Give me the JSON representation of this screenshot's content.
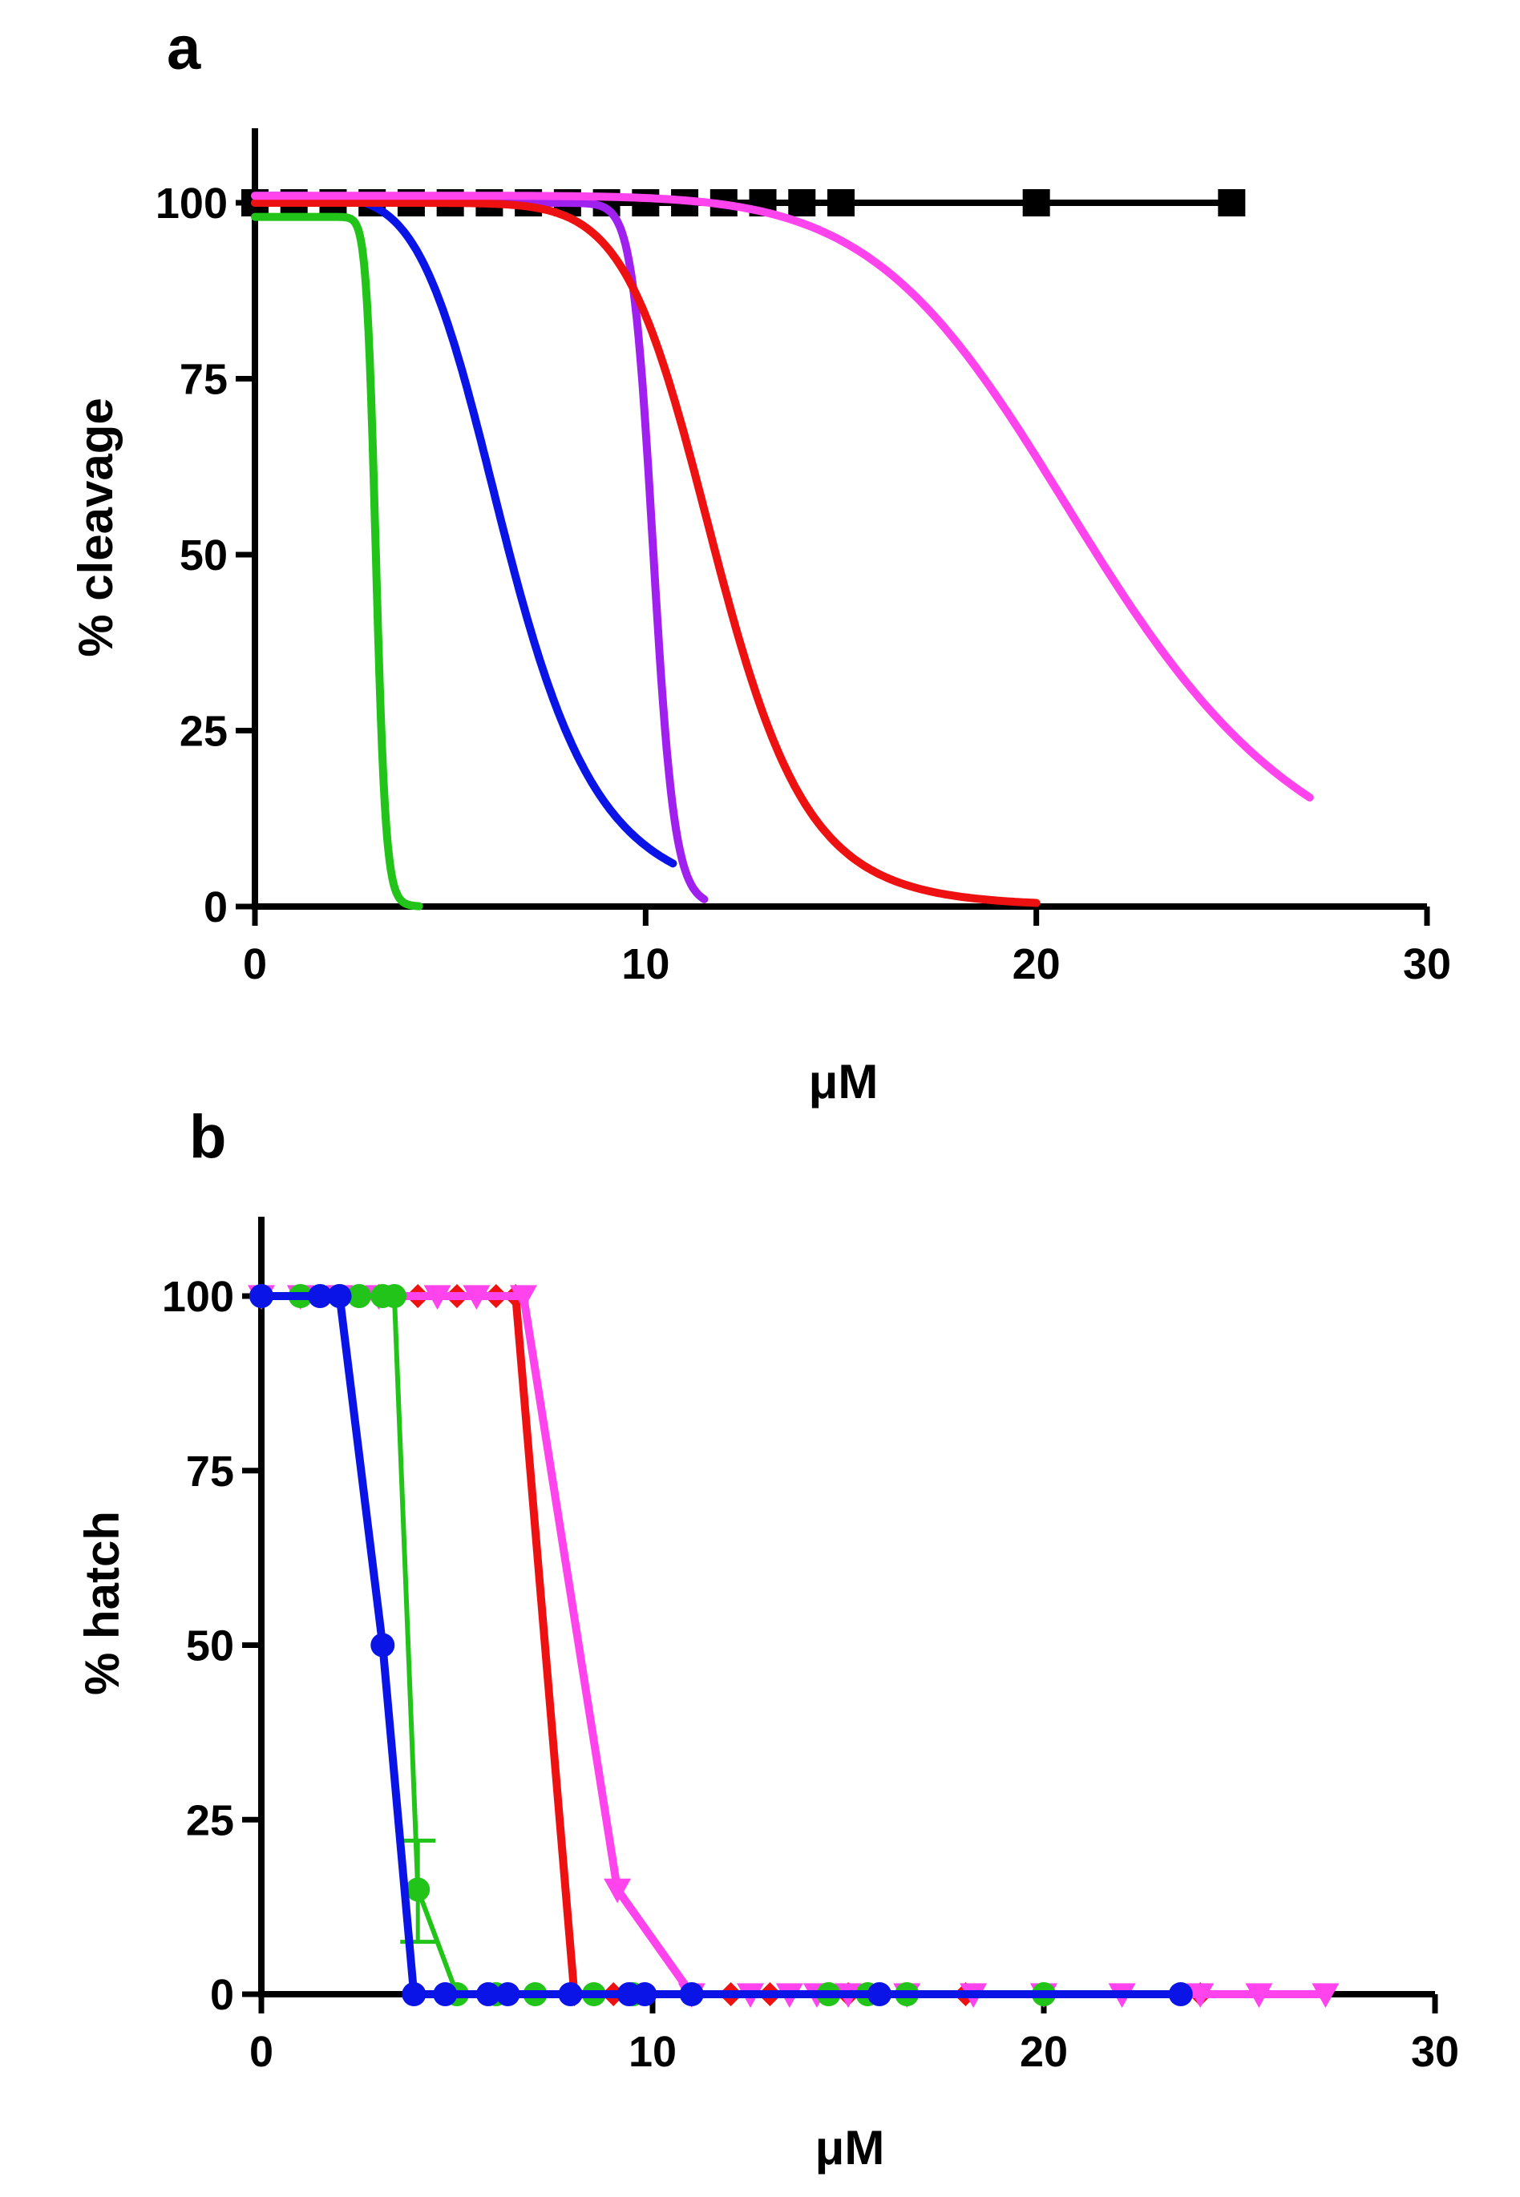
{
  "chart_data": [
    {
      "type": "line",
      "panel_label": "a",
      "xlabel": "μM",
      "ylabel": "% cleavage",
      "xlim": [
        0,
        30
      ],
      "ylim": [
        0,
        110
      ],
      "xticks": [
        0,
        10,
        20,
        30
      ],
      "yticks": [
        0,
        25,
        50,
        75,
        100
      ],
      "xtick_labels": [
        "0",
        "10",
        "20",
        "30"
      ],
      "ytick_labels": [
        "0",
        "25",
        "50",
        "75",
        "100"
      ],
      "grid": false,
      "legend": "none",
      "series": [
        {
          "name": "black",
          "color": "#000000",
          "kind": "points",
          "marker": "square",
          "x": [
            0,
            1,
            2,
            3,
            4,
            5,
            6,
            7,
            8,
            9,
            10,
            11,
            12,
            13,
            14,
            15,
            20,
            25
          ],
          "y": [
            100,
            100,
            100,
            100,
            100,
            100,
            100,
            100,
            100,
            100,
            100,
            100,
            100,
            100,
            100,
            100,
            100,
            100
          ]
        },
        {
          "name": "green",
          "color": "#22c41a",
          "kind": "sigmoid",
          "top": 98,
          "bottom": 0,
          "ec50": 3.1,
          "hill": 25,
          "x_range": [
            0,
            4.2
          ]
        },
        {
          "name": "blue",
          "color": "#0a14e6",
          "kind": "sigmoid",
          "top": 101,
          "bottom": 0,
          "ec50": 6.5,
          "hill": 5.5,
          "x_range": [
            0,
            10.7
          ]
        },
        {
          "name": "purple",
          "color": "#a020f0",
          "kind": "sigmoid",
          "top": 100,
          "bottom": 0,
          "ec50": 10.2,
          "hill": 38,
          "x_range": [
            0,
            11.5
          ]
        },
        {
          "name": "red",
          "color": "#ee1111",
          "kind": "sigmoid",
          "top": 100,
          "bottom": 0,
          "ec50": 11.8,
          "hill": 10,
          "x_range": [
            0,
            20
          ]
        },
        {
          "name": "magenta",
          "color": "#ff44ee",
          "kind": "sigmoid",
          "top": 101,
          "bottom": 0,
          "ec50": 21.5,
          "hill": 7.5,
          "x_range": [
            0,
            27
          ]
        }
      ]
    },
    {
      "type": "line",
      "panel_label": "b",
      "xlabel": "μM",
      "ylabel": "% hatch",
      "xlim": [
        0,
        30
      ],
      "ylim": [
        0,
        110
      ],
      "xticks": [
        0,
        10,
        20,
        30
      ],
      "yticks": [
        0,
        25,
        50,
        75,
        100
      ],
      "xtick_labels": [
        "0",
        "10",
        "20",
        "30"
      ],
      "ytick_labels": [
        "0",
        "25",
        "50",
        "75",
        "100"
      ],
      "grid": false,
      "legend": "none",
      "series": [
        {
          "name": "red",
          "color": "#ee1111",
          "marker": "diamond",
          "line_width": 10,
          "x": [
            0,
            1,
            2,
            3,
            4,
            5,
            6,
            6.5,
            8,
            9,
            11,
            12,
            13,
            15,
            18,
            20,
            24
          ],
          "y": [
            100,
            100,
            100,
            100,
            100,
            100,
            100,
            100,
            0,
            0,
            0,
            0,
            0,
            0,
            0,
            0,
            0
          ]
        },
        {
          "name": "magenta",
          "color": "#ff44ee",
          "marker": "triangle-down",
          "line_width": 10,
          "x": [
            0,
            1,
            2,
            3,
            4.5,
            5.5,
            6.7,
            9.1,
            11,
            12.5,
            13.5,
            14.2,
            15,
            16.5,
            18.2,
            20,
            22,
            24,
            25.5,
            27.2
          ],
          "y": [
            100,
            100,
            100,
            100,
            100,
            100,
            100,
            15,
            0,
            0,
            0,
            0,
            0,
            0,
            0,
            0,
            0,
            0,
            0,
            0
          ]
        },
        {
          "name": "green",
          "color": "#22c41a",
          "marker": "circle",
          "line_width": 6,
          "x": [
            0,
            1,
            2,
            2.5,
            3.1,
            3.4,
            4,
            5,
            6,
            7,
            8.5,
            9.5,
            14.5,
            15.5,
            16.5,
            20
          ],
          "y": [
            100,
            100,
            100,
            100,
            100,
            100,
            15,
            0,
            0,
            0,
            0,
            0,
            0,
            0,
            0,
            0
          ],
          "error_bars": [
            {
              "x": 4,
              "low": 7.5,
              "high": 22
            }
          ]
        },
        {
          "name": "blue",
          "color": "#0a14e6",
          "marker": "circle",
          "line_width": 10,
          "x": [
            0,
            1.5,
            2,
            3.1,
            3.9,
            4.7,
            5.8,
            6.3,
            7.9,
            9.4,
            9.8,
            11,
            15.8,
            23.5
          ],
          "y": [
            100,
            100,
            100,
            50,
            0,
            0,
            0,
            0,
            0,
            0,
            0,
            0,
            0,
            0
          ]
        }
      ]
    }
  ]
}
